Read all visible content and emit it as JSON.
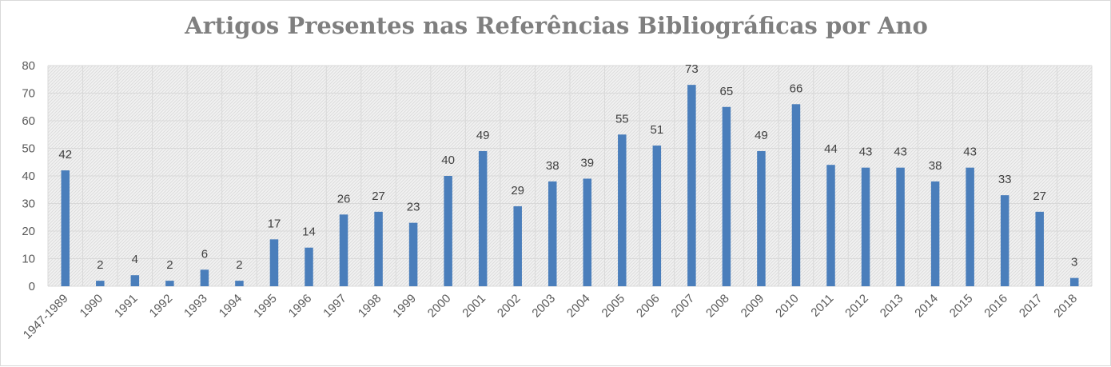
{
  "chart_data": {
    "type": "bar",
    "title": "Artigos Presentes nas Referências Bibliográficas por Ano",
    "xlabel": "",
    "ylabel": "",
    "categories": [
      "1947-1989",
      "1990",
      "1991",
      "1992",
      "1993",
      "1994",
      "1995",
      "1996",
      "1997",
      "1998",
      "1999",
      "2000",
      "2001",
      "2002",
      "2003",
      "2004",
      "2005",
      "2006",
      "2007",
      "2008",
      "2009",
      "2010",
      "2011",
      "2012",
      "2013",
      "2014",
      "2015",
      "2016",
      "2017",
      "2018"
    ],
    "values": [
      42,
      2,
      4,
      2,
      6,
      2,
      17,
      14,
      26,
      27,
      23,
      40,
      49,
      29,
      38,
      39,
      55,
      51,
      73,
      65,
      49,
      66,
      44,
      43,
      43,
      38,
      43,
      33,
      27,
      3
    ],
    "ylim": [
      0,
      80
    ],
    "yticks": [
      0,
      10,
      20,
      30,
      40,
      50,
      60,
      70,
      80
    ],
    "grid": true,
    "legend": "none",
    "bar_color": "#4a7ebb",
    "grid_color": "#d9d9d9"
  }
}
